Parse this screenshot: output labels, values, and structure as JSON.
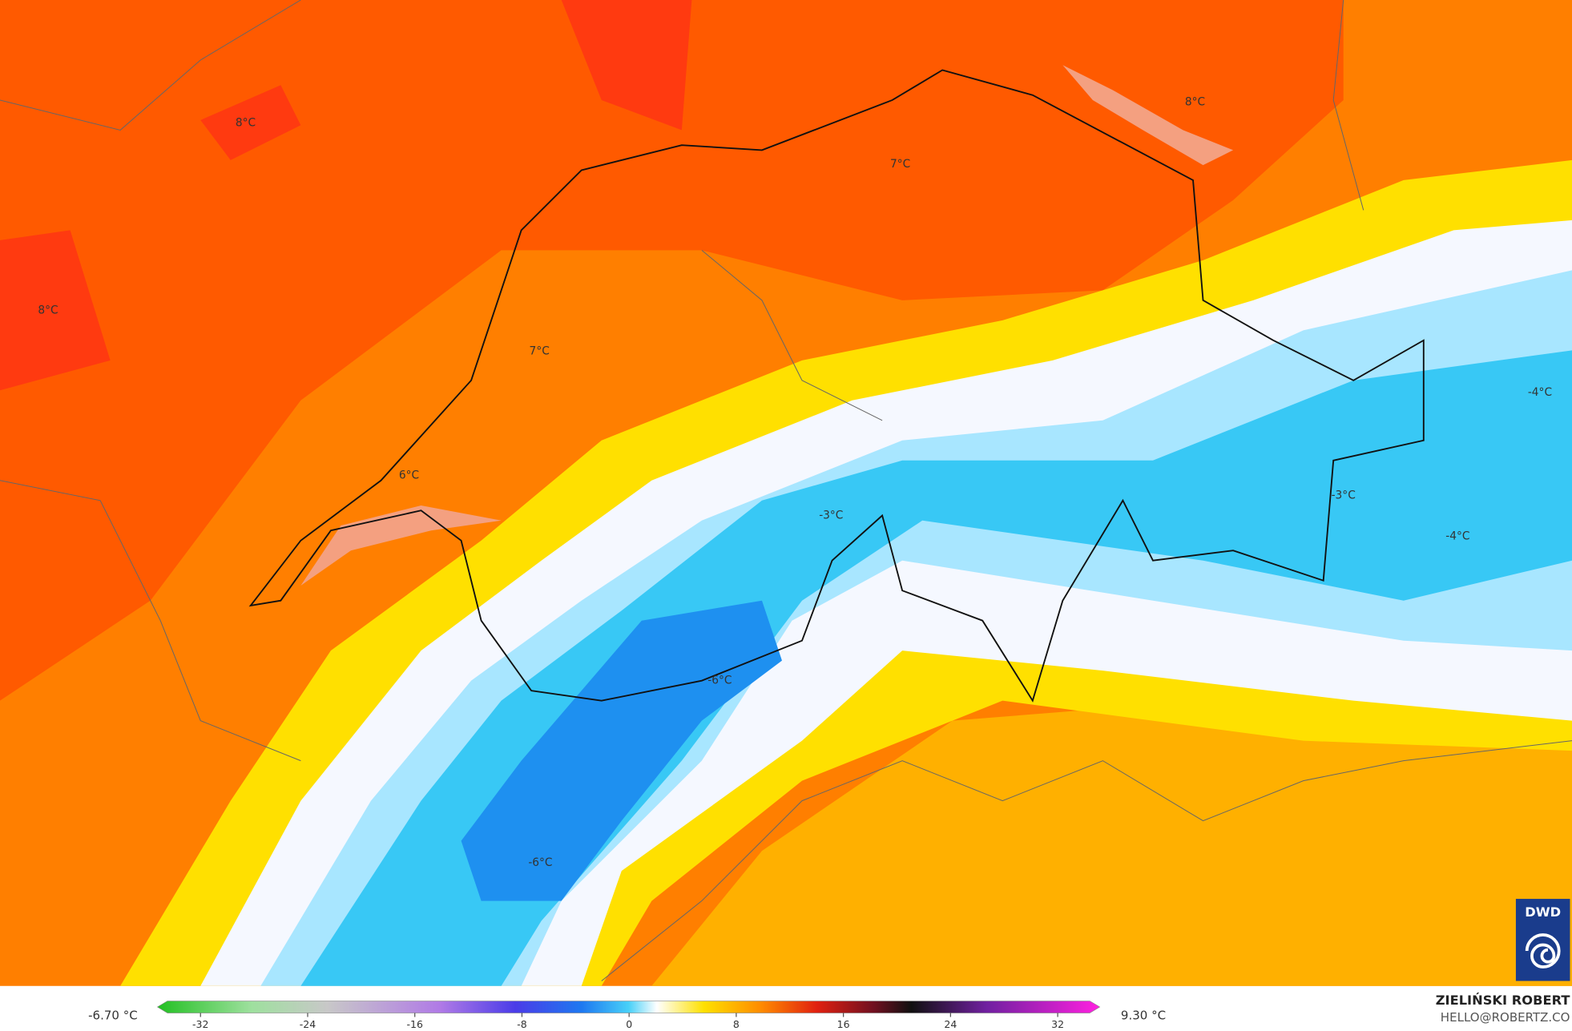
{
  "map": {
    "labels": [
      "8°C",
      "8°C",
      "8°C",
      "7°C",
      "7°C",
      "6°C",
      "-3°C",
      "-3°C",
      "-4°C",
      "-4°C",
      "-6°C",
      "-6°C"
    ],
    "colorbar": {
      "min_label": "-6.70 °C",
      "max_label": "9.30 °C",
      "ticks": [
        -32,
        -24,
        -16,
        -8,
        0,
        8,
        16,
        24,
        32
      ]
    },
    "logo": "DWD",
    "credit": {
      "author": "ZIELIŃSKI ROBERT",
      "contact": "HELLO@ROBERTZ.CO"
    }
  }
}
